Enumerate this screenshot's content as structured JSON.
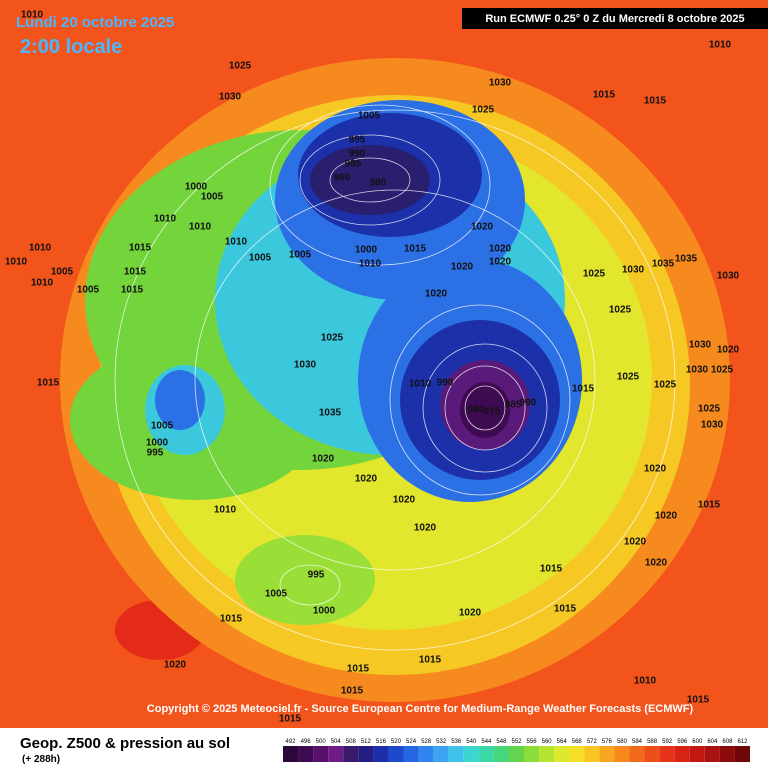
{
  "header": {
    "date": "Lundi 20 octobre 2025",
    "time": "2:00 locale",
    "run": "Run ECMWF 0.25° 0 Z du Mercredi 8 octobre 2025"
  },
  "credit": "Copyright © 2025 Meteociel.fr - Source European Centre for Medium-Range Weather Forecasts (ECMWF)",
  "footer": {
    "title": "Geop. Z500 & pression au sol",
    "lead": "(+ 288h)"
  },
  "legend": {
    "labels": [
      492,
      496,
      500,
      504,
      508,
      512,
      516,
      520,
      524,
      528,
      532,
      536,
      540,
      544,
      548,
      552,
      556,
      560,
      564,
      568,
      572,
      576,
      580,
      584,
      588,
      592,
      596,
      600,
      604,
      608,
      612
    ],
    "colors": [
      "#2a0838",
      "#3e0b52",
      "#58106c",
      "#701a86",
      "#3a1a6a",
      "#241c80",
      "#1c2ea8",
      "#1f49cc",
      "#2467e4",
      "#2f86ee",
      "#3aa4f2",
      "#3ec2ea",
      "#3cd6d0",
      "#3ad8a6",
      "#48d67a",
      "#62d44e",
      "#8cdc3a",
      "#b6e432",
      "#dce82c",
      "#f6e026",
      "#f8c422",
      "#f8a620",
      "#f6881e",
      "#f26a1c",
      "#ee4e1a",
      "#e63418",
      "#d82214",
      "#c21812",
      "#a81210",
      "#8c0c0c",
      "#6e0808"
    ]
  },
  "isobar_labels": [
    1010,
    1025,
    1030,
    1030,
    1025,
    1005,
    1015,
    1015,
    1010,
    995,
    990,
    985,
    980,
    980,
    1000,
    1005,
    1010,
    1010,
    1010,
    1005,
    1005,
    1000,
    1010,
    1015,
    1020,
    1020,
    1020,
    1020,
    1020,
    1015,
    1015,
    1015,
    1005,
    1000,
    995,
    1030,
    1025,
    1035,
    1020,
    1020,
    1010,
    990,
    980,
    975,
    985,
    990,
    1015,
    1025,
    1030,
    1035,
    1035,
    1030,
    1025,
    1025,
    1025,
    1030,
    1020,
    1030,
    1025,
    1025,
    1030,
    1020,
    1015,
    1020,
    1020,
    1020,
    1010,
    995,
    1005,
    1000,
    1015,
    1020,
    1015,
    1015,
    1015,
    1015,
    1020,
    1015,
    1015,
    1020,
    1020,
    1010,
    1015,
    1010,
    1010,
    1010,
    1005,
    1005,
    1015
  ]
}
